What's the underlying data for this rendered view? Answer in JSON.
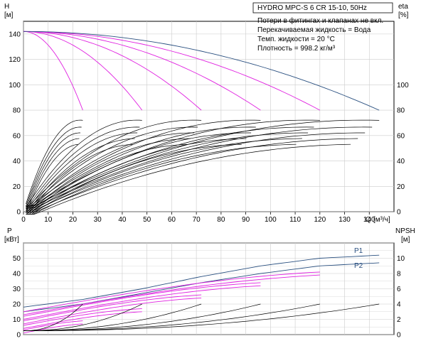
{
  "title": "HYDRO MPC-S 6 CR 15-10, 50Hz",
  "notes": [
    "Потери в фитингах и клапанах не вкл.",
    "Перекачиваемая жидкость = Вода",
    "Темп. жидкости = 20 °C",
    "Плотность = 998.2 кг/м³"
  ],
  "colors": {
    "pump_line": "#000000",
    "magenta": "#e020e0",
    "blue": "#2a5080",
    "grid": "#cccccc"
  },
  "chart_data": [
    {
      "type": "line",
      "name": "qh",
      "ylabel": "H",
      "yunit": "[м]",
      "ylabel_right": "eta",
      "yunit_right": "[%]",
      "xlabel": "Q",
      "xunit": "[м³/ч]",
      "xlim": [
        0,
        150
      ],
      "ylim": [
        0,
        150
      ],
      "xticks": [
        0,
        10,
        20,
        30,
        40,
        50,
        60,
        70,
        80,
        90,
        100,
        110,
        120,
        130,
        140
      ],
      "yticks": [
        0,
        20,
        40,
        60,
        80,
        100,
        120,
        140
      ],
      "yticks_right": [
        0,
        20,
        40,
        60,
        80,
        100
      ],
      "h_curves": {
        "shutoff_head": 142,
        "pump_ends_x": [
          24,
          48,
          72,
          96,
          120
        ],
        "pump_ends_y": [
          80,
          80,
          80,
          80,
          80
        ],
        "max_curve": {
          "x": [
            0,
            24,
            48,
            72,
            96,
            120,
            144
          ],
          "y": [
            142,
            139,
            133,
            124,
            113,
            98,
            80
          ]
        }
      },
      "eta_curves": [
        {
          "qmax": 24,
          "peak": 72
        },
        {
          "qmax": 48,
          "peak": 72
        },
        {
          "qmax": 72,
          "peak": 72
        },
        {
          "qmax": 96,
          "peak": 72
        },
        {
          "qmax": 120,
          "peak": 72
        },
        {
          "qmax": 144,
          "peak": 72
        }
      ]
    },
    {
      "type": "line",
      "name": "power-npsh",
      "ylabel": "P",
      "yunit": "[кВт]",
      "ylabel_right": "NPSH",
      "yunit_right": "[м]",
      "xlim": [
        0,
        150
      ],
      "ylim": [
        0,
        60
      ],
      "yticks": [
        0,
        10,
        20,
        30,
        40,
        50
      ],
      "yticks_right": [
        0,
        2,
        4,
        6,
        8,
        10
      ],
      "series": [
        {
          "name": "P1",
          "x": [
            0,
            24,
            48,
            72,
            96,
            120,
            144
          ],
          "y": [
            18,
            23,
            30,
            38,
            45,
            50,
            52
          ]
        },
        {
          "name": "P2",
          "x": [
            0,
            24,
            48,
            72,
            96,
            120,
            144
          ],
          "y": [
            15,
            20,
            27,
            34,
            40,
            45,
            47
          ]
        }
      ],
      "power_magenta": [
        {
          "qmax": 24,
          "y0": 3,
          "y1": 9
        },
        {
          "qmax": 48,
          "y0": 6,
          "y1": 17
        },
        {
          "qmax": 72,
          "y0": 9,
          "y1": 26
        },
        {
          "qmax": 96,
          "y0": 12,
          "y1": 34
        },
        {
          "qmax": 120,
          "y0": 15,
          "y1": 41
        }
      ],
      "npsh_curves": [
        {
          "qmax": 24,
          "y1": 4
        },
        {
          "qmax": 48,
          "y1": 4
        },
        {
          "qmax": 72,
          "y1": 4
        },
        {
          "qmax": 96,
          "y1": 4
        },
        {
          "qmax": 120,
          "y1": 4
        },
        {
          "qmax": 144,
          "y1": 4
        }
      ]
    }
  ]
}
